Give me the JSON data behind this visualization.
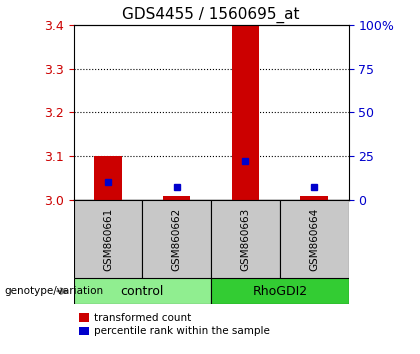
{
  "title": "GDS4455 / 1560695_at",
  "samples": [
    "GSM860661",
    "GSM860662",
    "GSM860663",
    "GSM860664"
  ],
  "red_values": [
    3.1,
    3.01,
    3.4,
    3.01
  ],
  "blue_values": [
    3.04,
    3.03,
    3.09,
    3.03
  ],
  "ylim_left": [
    3.0,
    3.4
  ],
  "ylim_right": [
    0,
    100
  ],
  "yticks_left": [
    3.0,
    3.1,
    3.2,
    3.3,
    3.4
  ],
  "yticks_right": [
    0,
    25,
    50,
    75,
    100
  ],
  "ytick_labels_right": [
    "0",
    "25",
    "50",
    "75",
    "100%"
  ],
  "groups": [
    {
      "label": "control",
      "samples": [
        0,
        1
      ],
      "color": "#90EE90"
    },
    {
      "label": "RhoGDI2",
      "samples": [
        2,
        3
      ],
      "color": "#33CC33"
    }
  ],
  "red_color": "#CC0000",
  "blue_color": "#0000CC",
  "bar_base": 3.0,
  "legend_red": "transformed count",
  "legend_blue": "percentile rank within the sample",
  "genotype_label": "genotype/variation",
  "sample_bg_color": "#C8C8C8",
  "title_fontsize": 11,
  "tick_fontsize": 9,
  "label_fontsize": 8,
  "bar_width": 0.4
}
